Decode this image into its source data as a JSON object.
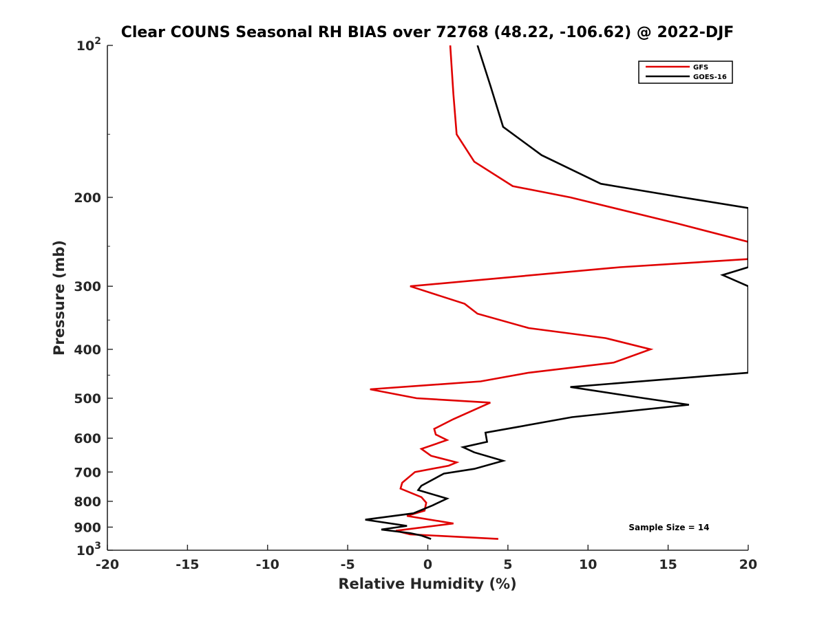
{
  "chart_data": {
    "type": "line",
    "title": "Clear COUNS Seasonal RH BIAS over 72768 (48.22, -106.62) @ 2022-DJF",
    "xlabel": "Relative Humidity (%)",
    "ylabel": "Pressure (mb)",
    "xlim": [
      -20,
      20
    ],
    "ylim": [
      100,
      1000
    ],
    "yscale": "log",
    "y_reversed": true,
    "grid": false,
    "x_ticks": [
      -20,
      -15,
      -10,
      -5,
      0,
      5,
      10,
      15,
      20
    ],
    "x_tick_labels": [
      "-20",
      "-15",
      "-10",
      "-5",
      "0",
      "5",
      "10",
      "15",
      "20"
    ],
    "y_ticks_plain": [
      200,
      300,
      400,
      500,
      600,
      700,
      800,
      900
    ],
    "y_tick_labels_plain": [
      "200",
      "300",
      "400",
      "500",
      "600",
      "700",
      "800",
      "900"
    ],
    "y_ticks_power": [
      {
        "value": 100,
        "base": "10",
        "exp": "2"
      },
      {
        "value": 1000,
        "base": "10",
        "exp": "3"
      }
    ],
    "legend": {
      "position": "top-right",
      "entries": [
        {
          "name": "GFS",
          "color": "#e00000"
        },
        {
          "name": "GOES-16",
          "color": "#000000"
        }
      ]
    },
    "annotation": "Sample Size = 14",
    "series": [
      {
        "name": "GFS",
        "color": "#e00000",
        "points": [
          [
            1.4,
            100
          ],
          [
            1.6,
            125
          ],
          [
            1.8,
            150
          ],
          [
            2.9,
            170
          ],
          [
            5.3,
            190
          ],
          [
            8.9,
            200
          ],
          [
            15.5,
            225
          ],
          [
            20.0,
            245
          ],
          [
            20.0,
            255
          ],
          [
            20.0,
            265
          ],
          [
            12,
            275
          ],
          [
            -1.1,
            300
          ],
          [
            2.3,
            325
          ],
          [
            3.1,
            340
          ],
          [
            6.3,
            363
          ],
          [
            11.1,
            380
          ],
          [
            13.9,
            400
          ],
          [
            11.6,
            425
          ],
          [
            6.3,
            445
          ],
          [
            3.3,
            463
          ],
          [
            -3.6,
            480
          ],
          [
            -0.7,
            500
          ],
          [
            3.9,
            510
          ],
          [
            1.6,
            550
          ],
          [
            0.4,
            575
          ],
          [
            0.5,
            590
          ],
          [
            1.2,
            605
          ],
          [
            -0.4,
            630
          ],
          [
            0.2,
            650
          ],
          [
            1.8,
            670
          ],
          [
            1.3,
            680
          ],
          [
            -0.8,
            700
          ],
          [
            -1.6,
            735
          ],
          [
            -1.7,
            755
          ],
          [
            -0.4,
            785
          ],
          [
            -0.1,
            805
          ],
          [
            -0.2,
            835
          ],
          [
            -1.3,
            855
          ],
          [
            1.6,
            885
          ],
          [
            -2.0,
            915
          ],
          [
            -1.1,
            930
          ],
          [
            4.4,
            950
          ]
        ]
      },
      {
        "name": "GOES-16",
        "color": "#000000",
        "points": [
          [
            3.1,
            100
          ],
          [
            3.9,
            120
          ],
          [
            4.7,
            145
          ],
          [
            7.1,
            165
          ],
          [
            10.8,
            188
          ],
          [
            15.9,
            200
          ],
          [
            20.0,
            210
          ],
          [
            20.0,
            230
          ],
          [
            20.0,
            250
          ],
          [
            20.0,
            275
          ],
          [
            18.4,
            285
          ],
          [
            20.0,
            300
          ],
          [
            20.0,
            350
          ],
          [
            20.0,
            445
          ],
          [
            8.9,
            475
          ],
          [
            13.5,
            500
          ],
          [
            16.3,
            515
          ],
          [
            9.0,
            545
          ],
          [
            5.6,
            570
          ],
          [
            3.6,
            585
          ],
          [
            3.7,
            610
          ],
          [
            2.2,
            625
          ],
          [
            2.9,
            640
          ],
          [
            4.7,
            665
          ],
          [
            2.9,
            690
          ],
          [
            1.0,
            705
          ],
          [
            -0.4,
            745
          ],
          [
            -0.6,
            760
          ],
          [
            1.2,
            790
          ],
          [
            0.3,
            815
          ],
          [
            -0.9,
            845
          ],
          [
            -3.9,
            870
          ],
          [
            -1.3,
            895
          ],
          [
            -2.9,
            910
          ],
          [
            -1.1,
            925
          ],
          [
            -0.4,
            935
          ],
          [
            0.2,
            950
          ]
        ]
      }
    ]
  }
}
